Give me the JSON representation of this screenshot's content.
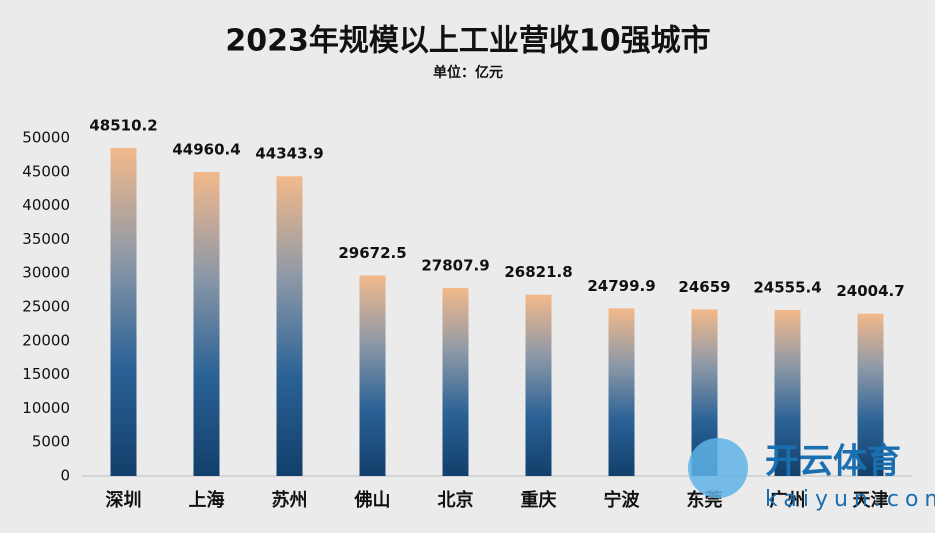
{
  "chart_data": {
    "type": "bar",
    "title": "2023年规模以上工业营收10强城市",
    "subtitle": "单位：亿元",
    "categories": [
      "深圳",
      "上海",
      "苏州",
      "佛山",
      "北京",
      "重庆",
      "宁波",
      "东莞",
      "广州",
      "天津"
    ],
    "values": [
      48510.2,
      44960.4,
      44343.9,
      29672.5,
      27807.9,
      26821.8,
      24799.9,
      24659,
      24555.4,
      24004.7
    ],
    "gradient": [
      "#f3b98a",
      "#8e99a7",
      "#2b6296",
      "#123f6b"
    ],
    "ylim": [
      0,
      50000
    ],
    "yticks": [
      0,
      5000,
      10000,
      15000,
      20000,
      25000,
      30000,
      35000,
      40000,
      45000,
      50000
    ],
    "grid": false,
    "annotations": [
      "开云体育",
      "kaiyun.com"
    ]
  }
}
